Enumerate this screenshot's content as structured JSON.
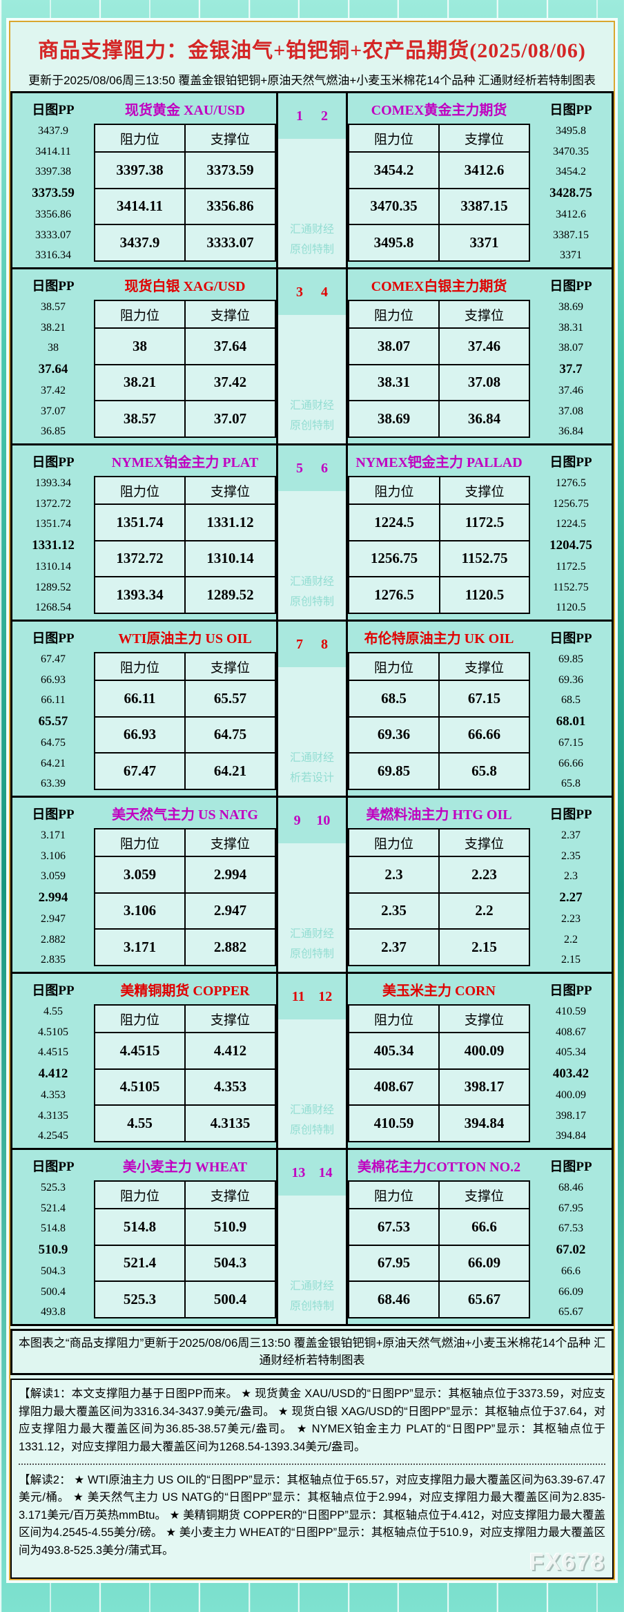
{
  "title": "商品支撑阻力：金银油气+铂钯铜+农产品期货(2025/08/06)",
  "subtitle": "更新于2025/08/06周三13:50 覆盖金银铂钯铜+原油天然气燃油+小麦玉米棉花14个品种 汇通财经析若特制图表",
  "labels": {
    "pp": "日图PP",
    "resistance": "阻力位",
    "support": "支撑位"
  },
  "colors": {
    "accent_magenta": "#c000c0",
    "accent_red": "#e00000",
    "title_red": "#d42626",
    "frame_teal": "#2fb39a",
    "panel_teal": "#a9e8de",
    "cell_cyan": "#d9f4f0",
    "gold_border": "#d9a62e",
    "watermark_teal": "#93ddd2"
  },
  "sections": [
    {
      "accent": "magenta",
      "nums": [
        "1",
        "2"
      ],
      "watermark": [
        "汇通财经",
        "原创特制"
      ],
      "left": {
        "name": "现货黄金 XAU/USD",
        "pp": [
          "3437.9",
          "3414.11",
          "3397.38",
          "3373.59",
          "3356.86",
          "3333.07",
          "3316.34"
        ],
        "rows": [
          [
            "3397.38",
            "3373.59"
          ],
          [
            "3414.11",
            "3356.86"
          ],
          [
            "3437.9",
            "3333.07"
          ]
        ]
      },
      "right": {
        "name": "COMEX黄金主力期货",
        "pp": [
          "3495.8",
          "3470.35",
          "3454.2",
          "3428.75",
          "3412.6",
          "3387.15",
          "3371"
        ],
        "rows": [
          [
            "3454.2",
            "3412.6"
          ],
          [
            "3470.35",
            "3387.15"
          ],
          [
            "3495.8",
            "3371"
          ]
        ]
      }
    },
    {
      "accent": "red",
      "nums": [
        "3",
        "4"
      ],
      "watermark": [
        "汇通财经",
        "原创特制"
      ],
      "left": {
        "name": "现货白银 XAG/USD",
        "pp": [
          "38.57",
          "38.21",
          "38",
          "37.64",
          "37.42",
          "37.07",
          "36.85"
        ],
        "rows": [
          [
            "38",
            "37.64"
          ],
          [
            "38.21",
            "37.42"
          ],
          [
            "38.57",
            "37.07"
          ]
        ]
      },
      "right": {
        "name": "COMEX白银主力期货",
        "pp": [
          "38.69",
          "38.31",
          "38.07",
          "37.7",
          "37.46",
          "37.08",
          "36.84"
        ],
        "rows": [
          [
            "38.07",
            "37.46"
          ],
          [
            "38.31",
            "37.08"
          ],
          [
            "38.69",
            "36.84"
          ]
        ]
      }
    },
    {
      "accent": "magenta",
      "nums": [
        "5",
        "6"
      ],
      "watermark": [
        "汇通财经",
        "原创特制"
      ],
      "left": {
        "name": "NYMEX铂金主力 PLAT",
        "pp": [
          "1393.34",
          "1372.72",
          "1351.74",
          "1331.12",
          "1310.14",
          "1289.52",
          "1268.54"
        ],
        "rows": [
          [
            "1351.74",
            "1331.12"
          ],
          [
            "1372.72",
            "1310.14"
          ],
          [
            "1393.34",
            "1289.52"
          ]
        ]
      },
      "right": {
        "name": "NYMEX钯金主力 PALLAD",
        "pp": [
          "1276.5",
          "1256.75",
          "1224.5",
          "1204.75",
          "1172.5",
          "1152.75",
          "1120.5"
        ],
        "rows": [
          [
            "1224.5",
            "1172.5"
          ],
          [
            "1256.75",
            "1152.75"
          ],
          [
            "1276.5",
            "1120.5"
          ]
        ]
      }
    },
    {
      "accent": "red",
      "nums": [
        "7",
        "8"
      ],
      "watermark": [
        "汇通财经",
        "析若设计"
      ],
      "left": {
        "name": "WTI原油主力 US OIL",
        "pp": [
          "67.47",
          "66.93",
          "66.11",
          "65.57",
          "64.75",
          "64.21",
          "63.39"
        ],
        "rows": [
          [
            "66.11",
            "65.57"
          ],
          [
            "66.93",
            "64.75"
          ],
          [
            "67.47",
            "64.21"
          ]
        ]
      },
      "right": {
        "name": "布伦特原油主力 UK OIL",
        "pp": [
          "69.85",
          "69.36",
          "68.5",
          "68.01",
          "67.15",
          "66.66",
          "65.8"
        ],
        "rows": [
          [
            "68.5",
            "67.15"
          ],
          [
            "69.36",
            "66.66"
          ],
          [
            "69.85",
            "65.8"
          ]
        ]
      }
    },
    {
      "accent": "magenta",
      "nums": [
        "9",
        "10"
      ],
      "watermark": [
        "汇通财经",
        "原创特制"
      ],
      "left": {
        "name": "美天然气主力 US NATG",
        "pp": [
          "3.171",
          "3.106",
          "3.059",
          "2.994",
          "2.947",
          "2.882",
          "2.835"
        ],
        "rows": [
          [
            "3.059",
            "2.994"
          ],
          [
            "3.106",
            "2.947"
          ],
          [
            "3.171",
            "2.882"
          ]
        ]
      },
      "right": {
        "name": "美燃料油主力 HTG OIL",
        "pp": [
          "2.37",
          "2.35",
          "2.3",
          "2.27",
          "2.23",
          "2.2",
          "2.15"
        ],
        "rows": [
          [
            "2.3",
            "2.23"
          ],
          [
            "2.35",
            "2.2"
          ],
          [
            "2.37",
            "2.15"
          ]
        ]
      }
    },
    {
      "accent": "red",
      "nums": [
        "11",
        "12"
      ],
      "watermark": [
        "汇通财经",
        "原创特制"
      ],
      "left": {
        "name": "美精铜期货 COPPER",
        "pp": [
          "4.55",
          "4.5105",
          "4.4515",
          "4.412",
          "4.353",
          "4.3135",
          "4.2545"
        ],
        "rows": [
          [
            "4.4515",
            "4.412"
          ],
          [
            "4.5105",
            "4.353"
          ],
          [
            "4.55",
            "4.3135"
          ]
        ]
      },
      "right": {
        "name": "美玉米主力 CORN",
        "pp": [
          "410.59",
          "408.67",
          "405.34",
          "403.42",
          "400.09",
          "398.17",
          "394.84"
        ],
        "rows": [
          [
            "405.34",
            "400.09"
          ],
          [
            "408.67",
            "398.17"
          ],
          [
            "410.59",
            "394.84"
          ]
        ]
      }
    },
    {
      "accent": "magenta",
      "nums": [
        "13",
        "14"
      ],
      "watermark": [
        "汇通财经",
        "原创特制"
      ],
      "left": {
        "name": "美小麦主力 WHEAT",
        "pp": [
          "525.3",
          "521.4",
          "514.8",
          "510.9",
          "504.3",
          "500.4",
          "493.8"
        ],
        "rows": [
          [
            "514.8",
            "510.9"
          ],
          [
            "521.4",
            "504.3"
          ],
          [
            "525.3",
            "500.4"
          ]
        ]
      },
      "right": {
        "name": "美棉花主力COTTON NO.2",
        "pp": [
          "68.46",
          "67.95",
          "67.53",
          "67.02",
          "66.6",
          "66.09",
          "65.67"
        ],
        "rows": [
          [
            "67.53",
            "66.6"
          ],
          [
            "67.95",
            "66.09"
          ],
          [
            "68.46",
            "65.67"
          ]
        ]
      }
    }
  ],
  "footer_note": "本图表之“商品支撑阻力”更新于2025/08/06周三13:50 覆盖金银铂钯铜+原油天然气燃油+小麦玉米棉花14个品种 汇通财经析若特制图表",
  "notes": [
    "【解读1：本文支撑阻力基于日图PP而来。 ★ 现货黄金 XAU/USD的“日图PP”显示：其枢轴点位于3373.59，对应支撑阻力最大覆盖区间为3316.34-3437.9美元/盎司。 ★ 现货白银 XAG/USD的“日图PP”显示：其枢轴点位于37.64，对应支撑阻力最大覆盖区间为36.85-38.57美元/盎司。 ★ NYMEX铂金主力 PLAT的“日图PP”显示：其枢轴点位于1331.12，对应支撑阻力最大覆盖区间为1268.54-1393.34美元/盎司。",
    "【解读2： ★ WTI原油主力 US OIL的“日图PP”显示：其枢轴点位于65.57，对应支撑阻力最大覆盖区间为63.39-67.47美元/桶。 ★ 美天然气主力 US NATG的“日图PP”显示：其枢轴点位于2.994，对应支撑阻力最大覆盖区间为2.835-3.171美元/百万英热mmBtu。 ★ 美精铜期货 COPPER的“日图PP”显示：其枢轴点位于4.412，对应支撑阻力最大覆盖区间为4.2545-4.55美分/磅。 ★ 美小麦主力 WHEAT的“日图PP”显示：其枢轴点位于510.9，对应支撑阻力最大覆盖区间为493.8-525.3美分/蒲式耳。"
  ],
  "brand_watermark": "FX678",
  "chart_data": [
    {
      "type": "table",
      "title": "现货黄金 XAU/USD",
      "columns": [
        "阻力位",
        "支撑位"
      ],
      "rows": [
        [
          3397.38,
          3373.59
        ],
        [
          3414.11,
          3356.86
        ],
        [
          3437.9,
          3333.07
        ]
      ],
      "pp_ladder": [
        3437.9,
        3414.11,
        3397.38,
        3373.59,
        3356.86,
        3333.07,
        3316.34
      ],
      "pivot": 3373.59
    },
    {
      "type": "table",
      "title": "COMEX黄金主力期货",
      "columns": [
        "阻力位",
        "支撑位"
      ],
      "rows": [
        [
          3454.2,
          3412.6
        ],
        [
          3470.35,
          3387.15
        ],
        [
          3495.8,
          3371
        ]
      ],
      "pp_ladder": [
        3495.8,
        3470.35,
        3454.2,
        3428.75,
        3412.6,
        3387.15,
        3371
      ],
      "pivot": 3428.75
    },
    {
      "type": "table",
      "title": "现货白银 XAG/USD",
      "columns": [
        "阻力位",
        "支撑位"
      ],
      "rows": [
        [
          38,
          37.64
        ],
        [
          38.21,
          37.42
        ],
        [
          38.57,
          37.07
        ]
      ],
      "pp_ladder": [
        38.57,
        38.21,
        38,
        37.64,
        37.42,
        37.07,
        36.85
      ],
      "pivot": 37.64
    },
    {
      "type": "table",
      "title": "COMEX白银主力期货",
      "columns": [
        "阻力位",
        "支撑位"
      ],
      "rows": [
        [
          38.07,
          37.46
        ],
        [
          38.31,
          37.08
        ],
        [
          38.69,
          36.84
        ]
      ],
      "pp_ladder": [
        38.69,
        38.31,
        38.07,
        37.7,
        37.46,
        37.08,
        36.84
      ],
      "pivot": 37.7
    },
    {
      "type": "table",
      "title": "NYMEX铂金主力 PLAT",
      "columns": [
        "阻力位",
        "支撑位"
      ],
      "rows": [
        [
          1351.74,
          1331.12
        ],
        [
          1372.72,
          1310.14
        ],
        [
          1393.34,
          1289.52
        ]
      ],
      "pp_ladder": [
        1393.34,
        1372.72,
        1351.74,
        1331.12,
        1310.14,
        1289.52,
        1268.54
      ],
      "pivot": 1331.12
    },
    {
      "type": "table",
      "title": "NYMEX钯金主力 PALLAD",
      "columns": [
        "阻力位",
        "支撑位"
      ],
      "rows": [
        [
          1224.5,
          1172.5
        ],
        [
          1256.75,
          1152.75
        ],
        [
          1276.5,
          1120.5
        ]
      ],
      "pp_ladder": [
        1276.5,
        1256.75,
        1224.5,
        1204.75,
        1172.5,
        1152.75,
        1120.5
      ],
      "pivot": 1204.75
    },
    {
      "type": "table",
      "title": "WTI原油主力 US OIL",
      "columns": [
        "阻力位",
        "支撑位"
      ],
      "rows": [
        [
          66.11,
          65.57
        ],
        [
          66.93,
          64.75
        ],
        [
          67.47,
          64.21
        ]
      ],
      "pp_ladder": [
        67.47,
        66.93,
        66.11,
        65.57,
        64.75,
        64.21,
        63.39
      ],
      "pivot": 65.57
    },
    {
      "type": "table",
      "title": "布伦特原油主力 UK OIL",
      "columns": [
        "阻力位",
        "支撑位"
      ],
      "rows": [
        [
          68.5,
          67.15
        ],
        [
          69.36,
          66.66
        ],
        [
          69.85,
          65.8
        ]
      ],
      "pp_ladder": [
        69.85,
        69.36,
        68.5,
        68.01,
        67.15,
        66.66,
        65.8
      ],
      "pivot": 68.01
    },
    {
      "type": "table",
      "title": "美天然气主力 US NATG",
      "columns": [
        "阻力位",
        "支撑位"
      ],
      "rows": [
        [
          3.059,
          2.994
        ],
        [
          3.106,
          2.947
        ],
        [
          3.171,
          2.882
        ]
      ],
      "pp_ladder": [
        3.171,
        3.106,
        3.059,
        2.994,
        2.947,
        2.882,
        2.835
      ],
      "pivot": 2.994
    },
    {
      "type": "table",
      "title": "美燃料油主力 HTG OIL",
      "columns": [
        "阻力位",
        "支撑位"
      ],
      "rows": [
        [
          2.3,
          2.23
        ],
        [
          2.35,
          2.2
        ],
        [
          2.37,
          2.15
        ]
      ],
      "pp_ladder": [
        2.37,
        2.35,
        2.3,
        2.27,
        2.23,
        2.2,
        2.15
      ],
      "pivot": 2.27
    },
    {
      "type": "table",
      "title": "美精铜期货 COPPER",
      "columns": [
        "阻力位",
        "支撑位"
      ],
      "rows": [
        [
          4.4515,
          4.412
        ],
        [
          4.5105,
          4.353
        ],
        [
          4.55,
          4.3135
        ]
      ],
      "pp_ladder": [
        4.55,
        4.5105,
        4.4515,
        4.412,
        4.353,
        4.3135,
        4.2545
      ],
      "pivot": 4.412
    },
    {
      "type": "table",
      "title": "美玉米主力 CORN",
      "columns": [
        "阻力位",
        "支撑位"
      ],
      "rows": [
        [
          405.34,
          400.09
        ],
        [
          408.67,
          398.17
        ],
        [
          410.59,
          394.84
        ]
      ],
      "pp_ladder": [
        410.59,
        408.67,
        405.34,
        403.42,
        400.09,
        398.17,
        394.84
      ],
      "pivot": 403.42
    },
    {
      "type": "table",
      "title": "美小麦主力 WHEAT",
      "columns": [
        "阻力位",
        "支撑位"
      ],
      "rows": [
        [
          514.8,
          510.9
        ],
        [
          521.4,
          504.3
        ],
        [
          525.3,
          500.4
        ]
      ],
      "pp_ladder": [
        525.3,
        521.4,
        514.8,
        510.9,
        504.3,
        500.4,
        493.8
      ],
      "pivot": 510.9
    },
    {
      "type": "table",
      "title": "美棉花主力COTTON NO.2",
      "columns": [
        "阻力位",
        "支撑位"
      ],
      "rows": [
        [
          67.53,
          66.6
        ],
        [
          67.95,
          66.09
        ],
        [
          68.46,
          65.67
        ]
      ],
      "pp_ladder": [
        68.46,
        67.95,
        67.53,
        67.02,
        66.6,
        66.09,
        65.67
      ],
      "pivot": 67.02
    }
  ]
}
